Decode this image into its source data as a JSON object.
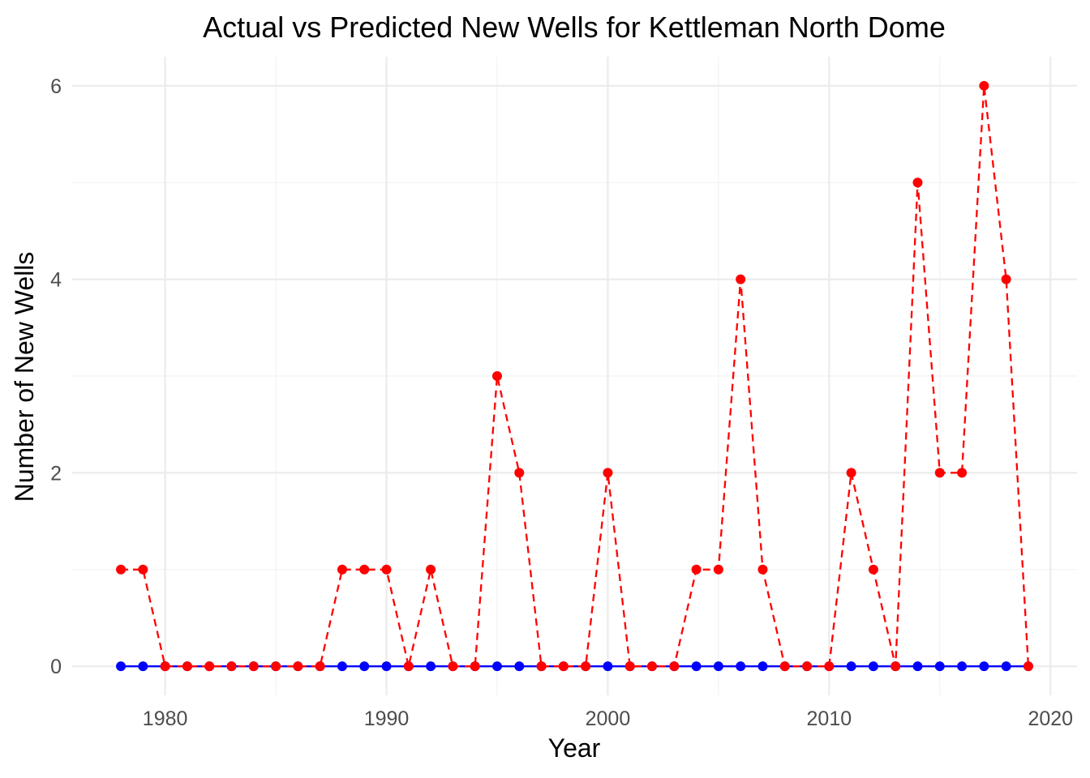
{
  "chart_data": {
    "type": "line",
    "title": "Actual vs Predicted New Wells for Kettleman North Dome",
    "xlabel": "Year",
    "ylabel": "Number of New Wells",
    "xlim": [
      1975.8,
      2021.2
    ],
    "ylim": [
      -0.3,
      6.3
    ],
    "xticks": [
      1980,
      1990,
      2000,
      2010,
      2020
    ],
    "xtick_labels": [
      "1980",
      "1990",
      "2000",
      "2010",
      "2020"
    ],
    "yticks": [
      0,
      2,
      4,
      6
    ],
    "ytick_labels": [
      "0",
      "2",
      "4",
      "6"
    ],
    "grid": true,
    "legend": "none",
    "x": [
      1978,
      1979,
      1980,
      1981,
      1982,
      1983,
      1984,
      1985,
      1986,
      1987,
      1988,
      1989,
      1990,
      1991,
      1992,
      1993,
      1994,
      1995,
      1996,
      1997,
      1998,
      1999,
      2000,
      2001,
      2002,
      2003,
      2004,
      2005,
      2006,
      2007,
      2008,
      2009,
      2010,
      2011,
      2012,
      2013,
      2014,
      2015,
      2016,
      2017,
      2018,
      2019
    ],
    "series": [
      {
        "color": "#0000ff",
        "line_style": "solid",
        "values": [
          0,
          0,
          0,
          0,
          0,
          0,
          0,
          0,
          0,
          0,
          0,
          0,
          0,
          0,
          0,
          0,
          0,
          0,
          0,
          0,
          0,
          0,
          0,
          0,
          0,
          0,
          0,
          0,
          0,
          0,
          0,
          0,
          0,
          0,
          0,
          0,
          0,
          0,
          0,
          0,
          0,
          0
        ]
      },
      {
        "color": "#ff0000",
        "line_style": "dashed",
        "values": [
          1,
          1,
          0,
          0,
          0,
          0,
          0,
          0,
          0,
          0,
          1,
          1,
          1,
          0,
          1,
          0,
          0,
          3,
          2,
          0,
          0,
          0,
          2,
          0,
          0,
          0,
          1,
          1,
          4,
          1,
          0,
          0,
          0,
          2,
          1,
          0,
          5,
          2,
          2,
          6,
          4,
          0
        ]
      }
    ]
  }
}
